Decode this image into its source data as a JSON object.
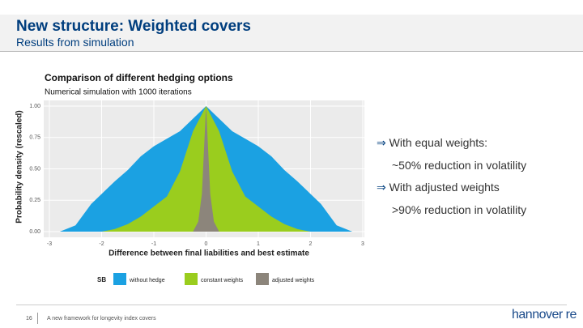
{
  "slide": {
    "title": "New structure: Weighted covers",
    "subtitle": "Results from simulation",
    "bullets": [
      {
        "arrow": "⇒",
        "text": "With equal weights:",
        "detail": "~50% reduction in volatility"
      },
      {
        "arrow": "⇒",
        "text": "With adjusted weights",
        "detail": ">90% reduction in volatility"
      }
    ],
    "page_number": "16",
    "footer": "A new framework for longevity index covers",
    "logo": "hannover re"
  },
  "chart_data": {
    "type": "area",
    "title": "Comparison of different hedging options",
    "subtitle": "Numerical simulation with 1000 iterations",
    "x_label": "Difference between final liabilities and best estimate",
    "y_label": "Probability density (rescaled)",
    "legend_title": "SB",
    "xlim": [
      -3,
      3
    ],
    "xticks": [
      -3,
      -2,
      -1,
      0,
      1,
      2,
      3
    ],
    "ylim": [
      0,
      1
    ],
    "yticks": [
      {
        "value": 0,
        "label": "0.00"
      },
      {
        "value": 0.25,
        "label": "0.25"
      },
      {
        "value": 0.5,
        "label": "0.50"
      },
      {
        "value": 0.75,
        "label": "0.75"
      },
      {
        "value": 1,
        "label": "1.00"
      }
    ],
    "grid": true,
    "series": [
      {
        "name": "without hedge",
        "color": "#1ba1e2",
        "x": [
          -2.8,
          -2.5,
          -2.2,
          -2,
          -1.75,
          -1.5,
          -1.25,
          -1,
          -0.75,
          -0.5,
          -0.25,
          0,
          0.25,
          0.5,
          0.75,
          1,
          1.25,
          1.5,
          1.75,
          2,
          2.2,
          2.5,
          2.8
        ],
        "values": [
          0,
          0.05,
          0.22,
          0.3,
          0.4,
          0.49,
          0.6,
          0.68,
          0.74,
          0.8,
          0.9,
          1,
          0.9,
          0.8,
          0.74,
          0.68,
          0.6,
          0.49,
          0.4,
          0.3,
          0.22,
          0.05,
          0
        ]
      },
      {
        "name": "constant weights",
        "color": "#9acd1e",
        "x": [
          -2,
          -1.75,
          -1.5,
          -1.25,
          -1,
          -0.75,
          -0.5,
          -0.25,
          0,
          0.25,
          0.5,
          0.75,
          1,
          1.25,
          1.5,
          1.75,
          2
        ],
        "values": [
          0,
          0.02,
          0.06,
          0.12,
          0.2,
          0.28,
          0.48,
          0.8,
          1,
          0.8,
          0.48,
          0.28,
          0.2,
          0.12,
          0.06,
          0.02,
          0
        ]
      },
      {
        "name": "adjusted weights",
        "color": "#8c857b",
        "x": [
          -0.25,
          -0.15,
          -0.08,
          -0.04,
          0,
          0.04,
          0.08,
          0.15,
          0.25
        ],
        "values": [
          0,
          0.08,
          0.3,
          0.65,
          1,
          0.65,
          0.3,
          0.08,
          0
        ]
      }
    ]
  }
}
